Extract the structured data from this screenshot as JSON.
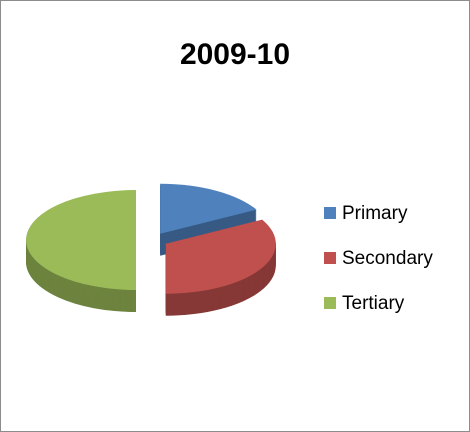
{
  "chart_data": {
    "type": "pie",
    "title": "2009-10",
    "categories": [
      "Primary",
      "Secondary",
      "Tertiary"
    ],
    "values": [
      17,
      33,
      50
    ],
    "colors": [
      "#4f81bd",
      "#c0504d",
      "#9bbb59"
    ],
    "exploded": true,
    "three_d": true,
    "legend": "right"
  }
}
